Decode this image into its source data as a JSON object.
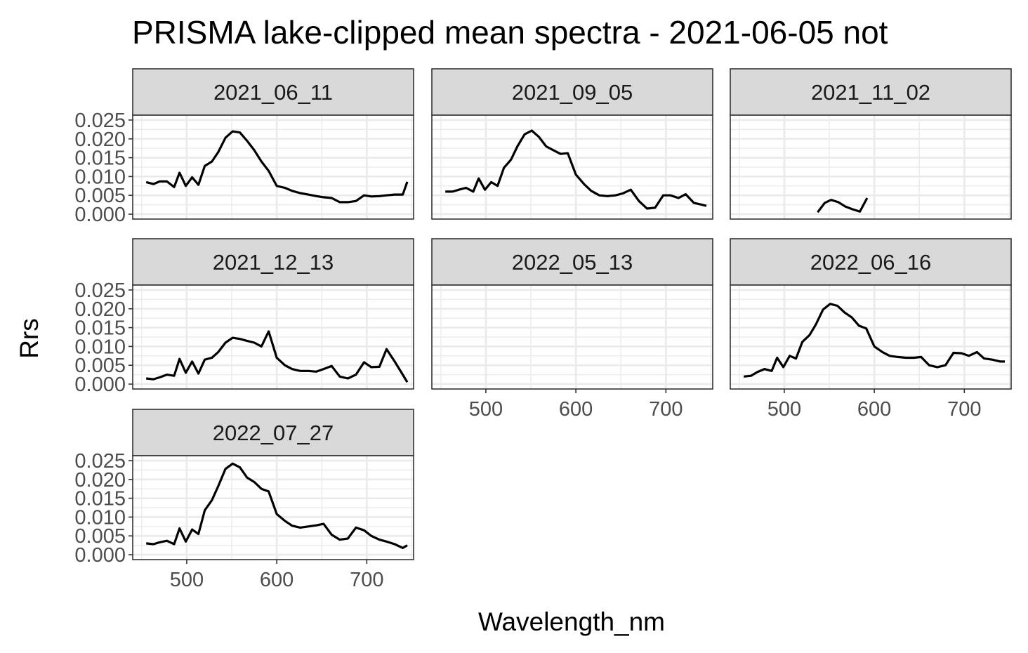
{
  "chart_data": {
    "type": "line",
    "title": "PRISMA lake-clipped mean spectra - 2021-06-05 not",
    "xlabel": "Wavelength_nm",
    "ylabel": "Rrs",
    "xlim": [
      440,
      752
    ],
    "ylim": [
      -0.0013,
      0.0263
    ],
    "x_ticks": [
      500,
      600,
      700
    ],
    "x_tick_labels": [
      "500",
      "600",
      "700"
    ],
    "y_ticks": [
      0,
      0.005,
      0.01,
      0.015,
      0.02,
      0.025
    ],
    "y_tick_labels": [
      "0.000",
      "0.005",
      "0.010",
      "0.015",
      "0.020",
      "0.025"
    ],
    "grid": true,
    "line_color": "#000000",
    "strip_fill": "#d9d9d9",
    "panel_border": "#333333",
    "grid_color": "#ebebeb",
    "panels": [
      {
        "label": "2021_06_11",
        "x": [
          455,
          463,
          470,
          478,
          486,
          492,
          499,
          506,
          513,
          520,
          528,
          535,
          543,
          551,
          559,
          567,
          575,
          583,
          591,
          600,
          609,
          617,
          626,
          635,
          644,
          652,
          661,
          670,
          679,
          688,
          697,
          705,
          714,
          722,
          731,
          740,
          745
        ],
        "y": [
          0.0085,
          0.008,
          0.0087,
          0.0087,
          0.0072,
          0.011,
          0.0075,
          0.0098,
          0.0078,
          0.0128,
          0.014,
          0.0165,
          0.0203,
          0.022,
          0.0217,
          0.0195,
          0.017,
          0.014,
          0.0115,
          0.0075,
          0.007,
          0.0062,
          0.0056,
          0.0052,
          0.0048,
          0.0045,
          0.0043,
          0.0032,
          0.0032,
          0.0035,
          0.005,
          0.0047,
          0.0048,
          0.005,
          0.0052,
          0.0052,
          0.0086
        ]
      },
      {
        "label": "2021_09_05",
        "x": [
          455,
          463,
          470,
          478,
          486,
          492,
          499,
          506,
          513,
          520,
          528,
          535,
          543,
          551,
          559,
          567,
          575,
          583,
          591,
          600,
          609,
          617,
          626,
          635,
          644,
          652,
          661,
          670,
          679,
          688,
          697,
          705,
          714,
          722,
          731,
          740,
          745
        ],
        "y": [
          0.006,
          0.006,
          0.0065,
          0.007,
          0.006,
          0.0095,
          0.0065,
          0.0085,
          0.0075,
          0.0123,
          0.0145,
          0.018,
          0.0212,
          0.0222,
          0.0205,
          0.018,
          0.017,
          0.016,
          0.0162,
          0.0105,
          0.008,
          0.0062,
          0.005,
          0.0048,
          0.005,
          0.0055,
          0.0065,
          0.0035,
          0.0015,
          0.0017,
          0.005,
          0.005,
          0.0043,
          0.0053,
          0.003,
          0.0025,
          0.0022
        ]
      },
      {
        "label": "2021_11_02",
        "x": [
          537,
          545,
          552,
          560,
          568,
          576,
          584,
          592
        ],
        "y": [
          0.0005,
          0.003,
          0.0038,
          0.0032,
          0.002,
          0.0013,
          0.0007,
          0.0043
        ]
      },
      {
        "label": "2021_12_13",
        "x": [
          455,
          463,
          470,
          478,
          486,
          492,
          499,
          506,
          513,
          520,
          528,
          535,
          543,
          551,
          559,
          567,
          575,
          583,
          591,
          600,
          609,
          617,
          626,
          635,
          644,
          652,
          661,
          670,
          679,
          688,
          697,
          705,
          714,
          722,
          731,
          740,
          745
        ],
        "y": [
          0.0015,
          0.0013,
          0.0018,
          0.0025,
          0.0022,
          0.0067,
          0.003,
          0.006,
          0.0028,
          0.0065,
          0.007,
          0.0085,
          0.011,
          0.0123,
          0.012,
          0.0115,
          0.011,
          0.01,
          0.014,
          0.007,
          0.005,
          0.004,
          0.0035,
          0.0035,
          0.0033,
          0.004,
          0.0048,
          0.002,
          0.0015,
          0.0025,
          0.0058,
          0.0045,
          0.0046,
          0.0093,
          0.006,
          0.0025,
          0.0005
        ]
      },
      {
        "label": "2022_05_13",
        "x": [],
        "y": []
      },
      {
        "label": "2022_06_16",
        "x": [
          455,
          463,
          470,
          478,
          486,
          492,
          499,
          506,
          513,
          520,
          528,
          535,
          543,
          551,
          559,
          567,
          575,
          583,
          591,
          600,
          609,
          617,
          626,
          635,
          644,
          652,
          661,
          670,
          679,
          688,
          697,
          705,
          714,
          722,
          731,
          740,
          745
        ],
        "y": [
          0.002,
          0.0022,
          0.0032,
          0.004,
          0.0035,
          0.007,
          0.0045,
          0.0075,
          0.0068,
          0.0112,
          0.013,
          0.0158,
          0.0198,
          0.0213,
          0.0208,
          0.019,
          0.0177,
          0.0155,
          0.0148,
          0.01,
          0.0085,
          0.0075,
          0.0072,
          0.007,
          0.007,
          0.0072,
          0.005,
          0.0045,
          0.005,
          0.0083,
          0.0082,
          0.0075,
          0.0085,
          0.0068,
          0.0065,
          0.006,
          0.006
        ]
      },
      {
        "label": "2022_07_27",
        "x": [
          455,
          463,
          470,
          478,
          486,
          492,
          499,
          506,
          513,
          520,
          528,
          535,
          543,
          551,
          559,
          567,
          575,
          583,
          591,
          600,
          609,
          617,
          626,
          635,
          644,
          652,
          661,
          670,
          679,
          688,
          697,
          705,
          714,
          722,
          731,
          740,
          745
        ],
        "y": [
          0.003,
          0.0028,
          0.0033,
          0.0037,
          0.0028,
          0.007,
          0.0035,
          0.0067,
          0.0055,
          0.0118,
          0.0145,
          0.0182,
          0.0228,
          0.0242,
          0.0232,
          0.0205,
          0.0193,
          0.0175,
          0.0168,
          0.0108,
          0.009,
          0.0077,
          0.0072,
          0.0075,
          0.0078,
          0.0082,
          0.0053,
          0.004,
          0.0043,
          0.0072,
          0.0065,
          0.005,
          0.004,
          0.0035,
          0.0028,
          0.0018,
          0.0025
        ]
      }
    ]
  }
}
